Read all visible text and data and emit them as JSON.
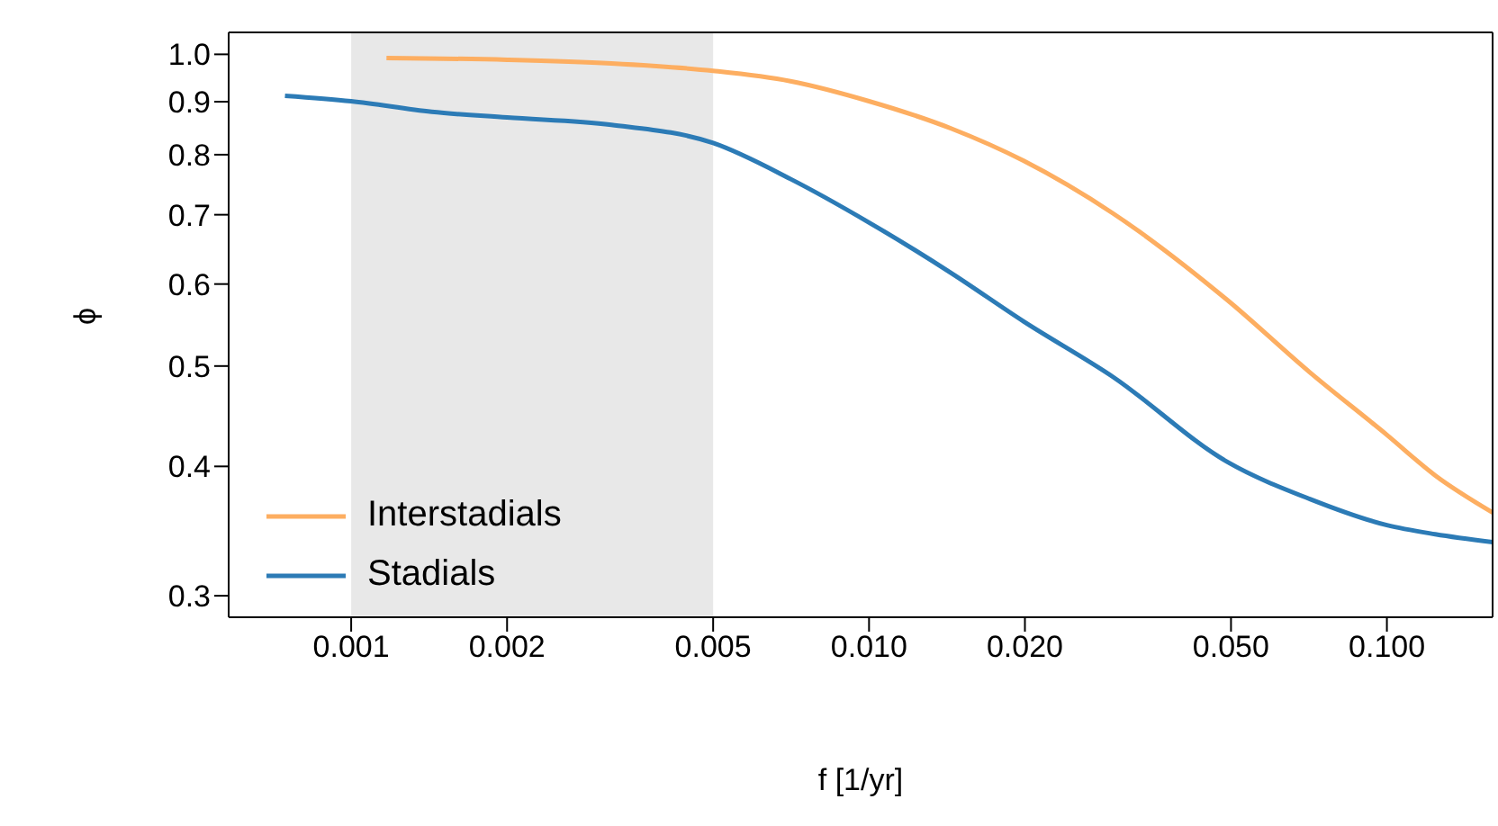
{
  "chart_data": {
    "type": "line",
    "xlabel": "f [1/yr]",
    "ylabel": "ϕ",
    "log": "xy",
    "legend": "bottom left",
    "marker": "none",
    "line_style": "solid",
    "xlim": [
      0.00058,
      0.16
    ],
    "ylim": [
      0.286,
      1.05
    ],
    "xticks": [
      {
        "value": 0.001,
        "label": "0.001"
      },
      {
        "value": 0.002,
        "label": "0.002"
      },
      {
        "value": 0.005,
        "label": "0.005"
      },
      {
        "value": 0.01,
        "label": "0.010"
      },
      {
        "value": 0.02,
        "label": "0.020"
      },
      {
        "value": 0.05,
        "label": "0.050"
      },
      {
        "value": 0.1,
        "label": "0.100"
      }
    ],
    "yticks": [
      0.3,
      0.4,
      0.5,
      0.6,
      0.7,
      0.8,
      0.9,
      {
        "value": 1,
        "label": "1.0"
      }
    ],
    "bands": [
      {
        "axis": "x",
        "from": 0.001,
        "to": 0.005,
        "color": "#e8e8e8"
      }
    ],
    "series": [
      {
        "name": "Interstadials",
        "color": "#fdae61",
        "x": [
          0.00117,
          0.002,
          0.00318,
          0.005,
          0.00705,
          0.01,
          0.0144,
          0.0199,
          0.0296,
          0.0492,
          0.071,
          0.1,
          0.124,
          0.16
        ],
        "values": [
          0.992,
          0.988,
          0.98,
          0.964,
          0.942,
          0.901,
          0.848,
          0.789,
          0.702,
          0.579,
          0.493,
          0.429,
          0.392,
          0.361
        ]
      },
      {
        "name": "Stadials",
        "color": "#2c7bb6",
        "x": [
          0.000745,
          0.001,
          0.00143,
          0.002,
          0.00318,
          0.005,
          0.00705,
          0.01,
          0.0144,
          0.0199,
          0.0296,
          0.0492,
          0.071,
          0.1,
          0.124,
          0.16
        ],
        "values": [
          0.912,
          0.901,
          0.88,
          0.869,
          0.855,
          0.821,
          0.758,
          0.688,
          0.615,
          0.552,
          0.488,
          0.404,
          0.372,
          0.351,
          0.344,
          0.338
        ]
      }
    ]
  }
}
